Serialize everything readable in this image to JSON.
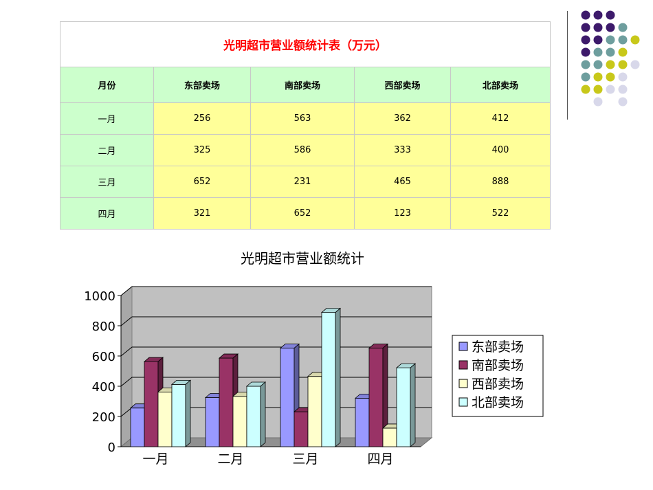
{
  "table": {
    "title": "光明超市营业额统计表（万元）",
    "headers": [
      "月份",
      "东部卖场",
      "南部卖场",
      "西部卖场",
      "北部卖场"
    ],
    "rows": [
      {
        "month": "一月",
        "values": [
          "256",
          "563",
          "362",
          "412"
        ]
      },
      {
        "month": "二月",
        "values": [
          "325",
          "586",
          "333",
          "400"
        ]
      },
      {
        "month": "三月",
        "values": [
          "652",
          "231",
          "465",
          "888"
        ]
      },
      {
        "month": "四月",
        "values": [
          "321",
          "652",
          "123",
          "522"
        ]
      }
    ]
  },
  "chart_data": {
    "type": "bar",
    "title": "光明超市营业额统计",
    "categories": [
      "一月",
      "二月",
      "三月",
      "四月"
    ],
    "series": [
      {
        "name": "东部卖场",
        "values": [
          256,
          325,
          652,
          321
        ],
        "color": "#9999ff"
      },
      {
        "name": "南部卖场",
        "values": [
          563,
          586,
          231,
          652
        ],
        "color": "#993366"
      },
      {
        "name": "西部卖场",
        "values": [
          362,
          333,
          465,
          123
        ],
        "color": "#ffffcc"
      },
      {
        "name": "北部卖场",
        "values": [
          412,
          400,
          888,
          522
        ],
        "color": "#ccffff"
      }
    ],
    "yticks": [
      "0",
      "200",
      "400",
      "600",
      "800",
      "1000"
    ],
    "ylim": [
      0,
      1000
    ],
    "grid": true,
    "legend": "right",
    "plot_background": "#c0c0c0",
    "three_d": true
  },
  "decoration": {
    "dot_colors": [
      "#3d1a6b",
      "#6e9e9e",
      "#c8c81a",
      "#d8d8ea"
    ]
  }
}
